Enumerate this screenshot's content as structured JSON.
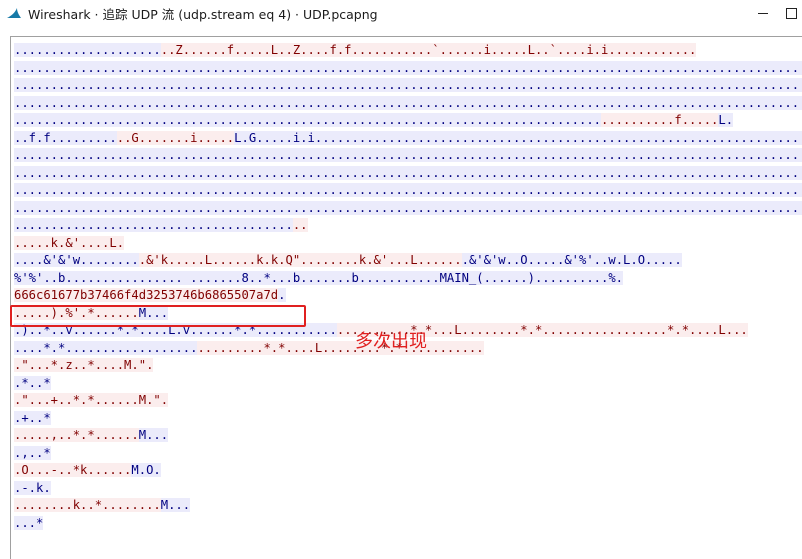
{
  "window": {
    "title": "Wireshark · 追踪 UDP 流 (udp.stream eq 4) · UDP.pcapng",
    "icon": "wireshark-fin-icon"
  },
  "stream": {
    "lines": [
      [
        [
          "b",
          "...................."
        ],
        [
          "r",
          "..Z......f.....L..Z....f.f...........`......i.....L..`....i.i............"
        ]
      ],
      [
        [
          "b",
          "..........................................................................................................................."
        ]
      ],
      [
        [
          "b",
          "..........................................................................................................................."
        ]
      ],
      [
        [
          "b",
          "..........................................................................................................................."
        ]
      ],
      [
        [
          "b",
          "................................................................................"
        ],
        [
          "r",
          "..........f....."
        ],
        [
          "b",
          "L."
        ]
      ],
      [
        [
          "b",
          "..f.f........."
        ],
        [
          "r",
          "..G.......i....."
        ],
        [
          "b",
          "L.G.....i.i..........................................................................................."
        ]
      ],
      [
        [
          "b",
          "..........................................................................................................................."
        ]
      ],
      [
        [
          "b",
          "..........................................................................................................................."
        ]
      ],
      [
        [
          "b",
          "..........................................................................................................................."
        ]
      ],
      [
        [
          "b",
          "..........................................................................................................................."
        ]
      ],
      [
        [
          "b",
          "......................................"
        ],
        [
          "r",
          ".."
        ]
      ],
      [
        [
          "r",
          ".....k.&'....L."
        ]
      ],
      [
        [
          "b",
          "....&'&'w........"
        ],
        [
          "r",
          ".&'k.....L......k.k.Q\"........k.&'...L......"
        ],
        [
          "b",
          ".&'&'w..O.....&'%'..w.L.O....."
        ]
      ],
      [
        [
          "b",
          "%'%'..b................ .......8..*...b.......b...........MAIN_(......)..........%."
        ]
      ],
      [
        [
          "r",
          "666c61677b37466f4d3253746b6865507a7d"
        ],
        [
          "b",
          "."
        ]
      ],
      [
        [
          "r",
          ".....).%'.*......"
        ],
        [
          "b",
          "M..."
        ]
      ],
      [
        [
          "b",
          ".)..*..v......*.*....L.v......*.*..........."
        ],
        [
          "r",
          "..........*.*...L........*.*.................*.*....L..."
        ]
      ],
      [
        [
          "b",
          "....*.*.................."
        ],
        [
          "r",
          ".........*.*....L........*.*..........."
        ]
      ],
      [
        [
          "r",
          ".\"...*.z..*....M.\"."
        ]
      ],
      [
        [
          "b",
          ".*..*"
        ]
      ],
      [
        [
          "r",
          ".\"...+..*.*......M.\"."
        ]
      ],
      [
        [
          "b",
          ".+..*"
        ]
      ],
      [
        [
          "r",
          ".....,..*.*......"
        ],
        [
          "b",
          "M..."
        ]
      ],
      [
        [
          "b",
          ".,..*"
        ]
      ],
      [
        [
          "r",
          ".O...-..*k......"
        ],
        [
          "b",
          "M.O."
        ]
      ],
      [
        [
          "b",
          ".-.k."
        ]
      ],
      [
        [
          "r",
          "........k..*........"
        ],
        [
          "b",
          "M..."
        ]
      ],
      [
        [
          "b",
          "...*"
        ]
      ]
    ]
  },
  "annotation": {
    "text": "多次出现",
    "color": "#e02020"
  },
  "colors": {
    "client_bg": "#fbeded",
    "client_fg": "#800000",
    "server_bg": "#ebebfb",
    "server_fg": "#000080"
  }
}
